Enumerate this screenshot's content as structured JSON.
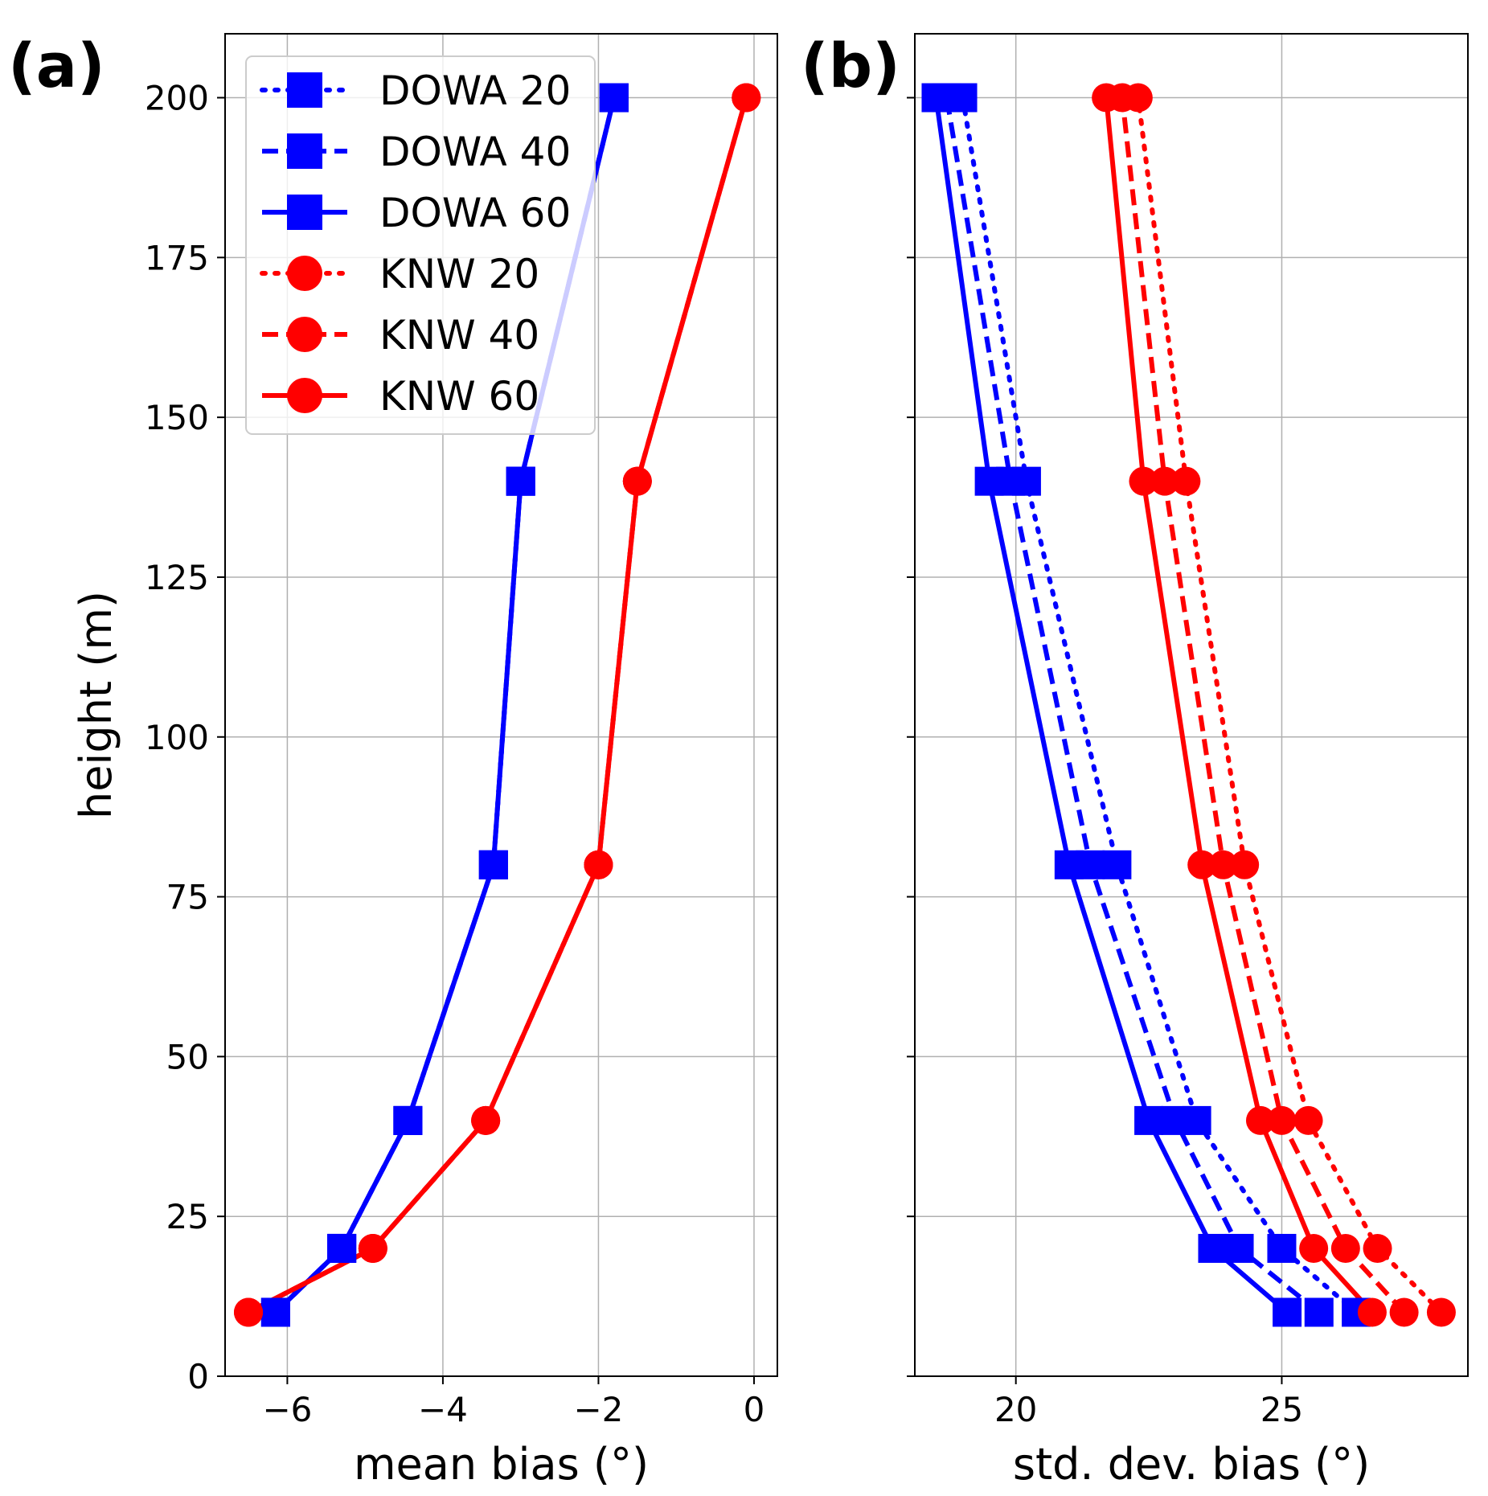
{
  "chart_data": [
    {
      "type": "line",
      "panel_label": "(a)",
      "xlabel": "mean bias (°)",
      "ylabel": "height (m)",
      "xlim": [
        -6.8,
        0.3
      ],
      "ylim": [
        0,
        210
      ],
      "xticks": [
        -6,
        -4,
        -2,
        0
      ],
      "xtick_labels": [
        "−6",
        "−4",
        "−2",
        "0"
      ],
      "yticks": [
        0,
        25,
        50,
        75,
        100,
        125,
        150,
        175,
        200
      ],
      "ytick_labels": [
        "0",
        "25",
        "50",
        "75",
        "100",
        "125",
        "150",
        "175",
        "200"
      ],
      "grid": true,
      "legend_position": "upper-left",
      "y": [
        10,
        20,
        40,
        80,
        140,
        200
      ],
      "series": [
        {
          "name": "DOWA 20",
          "color": "#0000ff",
          "linestyle": "dotted",
          "marker": "square",
          "x": [
            -6.15,
            -5.3,
            -4.45,
            -3.35,
            -3.0,
            -1.8
          ]
        },
        {
          "name": "DOWA 40",
          "color": "#0000ff",
          "linestyle": "dashed",
          "marker": "square",
          "x": [
            -6.15,
            -5.3,
            -4.45,
            -3.35,
            -3.0,
            -1.8
          ]
        },
        {
          "name": "DOWA 60",
          "color": "#0000ff",
          "linestyle": "solid",
          "marker": "square",
          "x": [
            -6.15,
            -5.3,
            -4.45,
            -3.35,
            -3.0,
            -1.8
          ]
        },
        {
          "name": "KNW 20",
          "color": "#ff0000",
          "linestyle": "dotted",
          "marker": "circle",
          "x": [
            -6.5,
            -4.9,
            -3.45,
            -2.0,
            -1.5,
            -0.1
          ]
        },
        {
          "name": "KNW 40",
          "color": "#ff0000",
          "linestyle": "dashed",
          "marker": "circle",
          "x": [
            -6.5,
            -4.9,
            -3.45,
            -2.0,
            -1.5,
            -0.1
          ]
        },
        {
          "name": "KNW 60",
          "color": "#ff0000",
          "linestyle": "solid",
          "marker": "circle",
          "x": [
            -6.5,
            -4.9,
            -3.45,
            -2.0,
            -1.5,
            -0.1
          ]
        }
      ]
    },
    {
      "type": "line",
      "panel_label": "(b)",
      "xlabel": "std. dev. bias (°)",
      "ylabel": "",
      "xlim": [
        18.1,
        28.5
      ],
      "ylim": [
        0,
        210
      ],
      "xticks": [
        20,
        25
      ],
      "xtick_labels": [
        "20",
        "25"
      ],
      "yticks": [
        0,
        25,
        50,
        75,
        100,
        125,
        150,
        175,
        200
      ],
      "grid": true,
      "y": [
        10,
        20,
        40,
        80,
        140,
        200
      ],
      "series": [
        {
          "name": "DOWA 20",
          "color": "#0000ff",
          "linestyle": "dotted",
          "marker": "square",
          "x": [
            26.4,
            25.0,
            23.4,
            21.9,
            20.2,
            19.0
          ]
        },
        {
          "name": "DOWA 40",
          "color": "#0000ff",
          "linestyle": "dashed",
          "marker": "square",
          "x": [
            25.7,
            24.2,
            23.0,
            21.4,
            19.9,
            18.7
          ]
        },
        {
          "name": "DOWA 60",
          "color": "#0000ff",
          "linestyle": "solid",
          "marker": "square",
          "x": [
            25.1,
            23.7,
            22.5,
            21.0,
            19.5,
            18.5
          ]
        },
        {
          "name": "KNW 20",
          "color": "#ff0000",
          "linestyle": "dotted",
          "marker": "circle",
          "x": [
            28.0,
            26.8,
            25.5,
            24.3,
            23.2,
            22.3
          ]
        },
        {
          "name": "KNW 40",
          "color": "#ff0000",
          "linestyle": "dashed",
          "marker": "circle",
          "x": [
            27.3,
            26.2,
            25.0,
            23.9,
            22.8,
            22.0
          ]
        },
        {
          "name": "KNW 60",
          "color": "#ff0000",
          "linestyle": "solid",
          "marker": "circle",
          "x": [
            26.7,
            25.6,
            24.6,
            23.5,
            22.4,
            21.7
          ]
        }
      ]
    }
  ]
}
